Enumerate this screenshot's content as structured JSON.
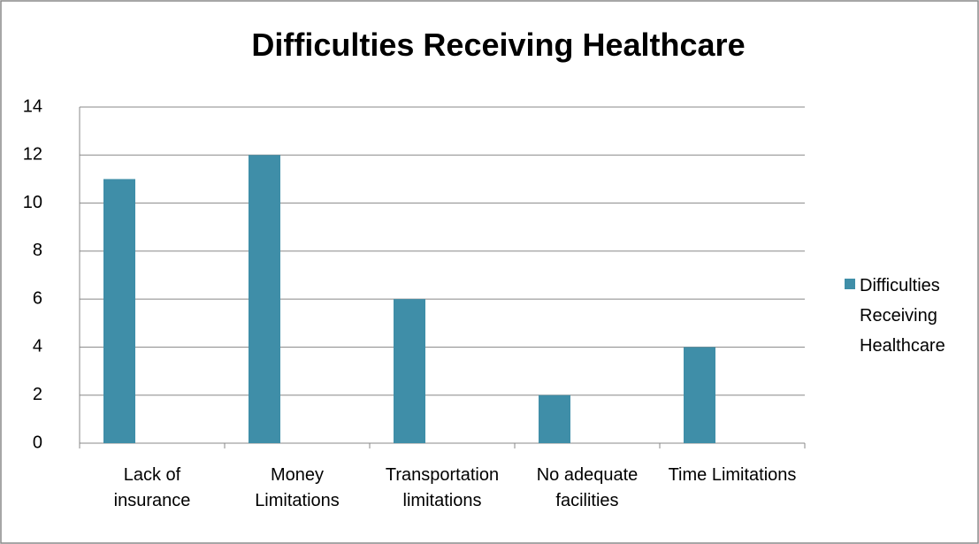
{
  "chart_data": {
    "type": "bar",
    "title": "Difficulties Receiving Healthcare",
    "categories": [
      "Lack of insurance",
      "Money Limitations",
      "Transportation limitations",
      "No adequate facilities",
      "Time Limitations"
    ],
    "series": [
      {
        "name": "Difficulties Receiving Healthcare",
        "color": "#3f8ea8",
        "values": [
          11,
          12,
          6,
          2,
          4
        ]
      }
    ],
    "ylim": [
      0,
      14
    ],
    "yticks": [
      0,
      2,
      4,
      6,
      8,
      10,
      12,
      14
    ],
    "grid": true,
    "legend": "right"
  }
}
